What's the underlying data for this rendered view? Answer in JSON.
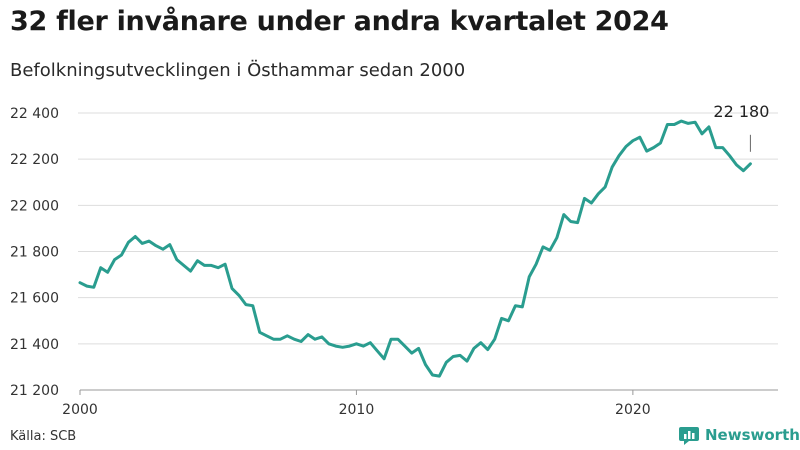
{
  "title": "32 fler invånare under andra kvartalet 2024",
  "subtitle": "Befolkningsutvecklingen i Östhammar sedan 2000",
  "source": "Källa: SCB",
  "brand": {
    "name": "Newsworthy",
    "color": "#2a9d8f",
    "icon": "bar-chart-icon"
  },
  "colors": {
    "line": "#2a9d8f",
    "grid": "#dddddd",
    "axis": "#999999"
  },
  "chart_data": {
    "type": "line",
    "xlabel": "",
    "ylabel": "",
    "x_ticks": [
      {
        "label": "2000",
        "value": 2000
      },
      {
        "label": "2010",
        "value": 2010
      },
      {
        "label": "2020",
        "value": 2020
      }
    ],
    "y_ticks": [
      {
        "label": "21 200",
        "value": 21200
      },
      {
        "label": "21 400",
        "value": 21400
      },
      {
        "label": "21 600",
        "value": 21600
      },
      {
        "label": "21 800",
        "value": 21800
      },
      {
        "label": "22 000",
        "value": 22000
      },
      {
        "label": "22 200",
        "value": 22200
      },
      {
        "label": "22 400",
        "value": 22400
      }
    ],
    "xlim": [
      2000,
      2025.25
    ],
    "ylim": [
      21200,
      22450
    ],
    "grid": "horizontal",
    "annotation": {
      "label": "22 180",
      "x": 2024.25,
      "y": 22180
    },
    "x": [
      2000.0,
      2000.25,
      2000.5,
      2000.75,
      2001.0,
      2001.25,
      2001.5,
      2001.75,
      2002.0,
      2002.25,
      2002.5,
      2002.75,
      2003.0,
      2003.25,
      2003.5,
      2003.75,
      2004.0,
      2004.25,
      2004.5,
      2004.75,
      2005.0,
      2005.25,
      2005.5,
      2005.75,
      2006.0,
      2006.25,
      2006.5,
      2006.75,
      2007.0,
      2007.25,
      2007.5,
      2007.75,
      2008.0,
      2008.25,
      2008.5,
      2008.75,
      2009.0,
      2009.25,
      2009.5,
      2009.75,
      2010.0,
      2010.25,
      2010.5,
      2010.75,
      2011.0,
      2011.25,
      2011.5,
      2011.75,
      2012.0,
      2012.25,
      2012.5,
      2012.75,
      2013.0,
      2013.25,
      2013.5,
      2013.75,
      2014.0,
      2014.25,
      2014.5,
      2014.75,
      2015.0,
      2015.25,
      2015.5,
      2015.75,
      2016.0,
      2016.25,
      2016.5,
      2016.75,
      2017.0,
      2017.25,
      2017.5,
      2017.75,
      2018.0,
      2018.25,
      2018.5,
      2018.75,
      2019.0,
      2019.25,
      2019.5,
      2019.75,
      2020.0,
      2020.25,
      2020.5,
      2020.75,
      2021.0,
      2021.25,
      2021.5,
      2021.75,
      2022.0,
      2022.25,
      2022.5,
      2022.75,
      2023.0,
      2023.25,
      2023.5,
      2023.75,
      2024.0,
      2024.25
    ],
    "values": [
      21665,
      21650,
      21645,
      21730,
      21710,
      21765,
      21785,
      21840,
      21865,
      21835,
      21845,
      21825,
      21810,
      21830,
      21765,
      21740,
      21715,
      21760,
      21740,
      21740,
      21730,
      21745,
      21640,
      21610,
      21570,
      21565,
      21450,
      21435,
      21420,
      21420,
      21435,
      21420,
      21410,
      21440,
      21420,
      21430,
      21400,
      21390,
      21385,
      21390,
      21400,
      21390,
      21405,
      21370,
      21335,
      21420,
      21420,
      21390,
      21360,
      21380,
      21310,
      21265,
      21260,
      21320,
      21345,
      21350,
      21325,
      21380,
      21405,
      21375,
      21420,
      21510,
      21500,
      21565,
      21560,
      21690,
      21745,
      21820,
      21805,
      21860,
      21960,
      21930,
      21925,
      22030,
      22010,
      22050,
      22080,
      22165,
      22215,
      22255,
      22280,
      22295,
      22235,
      22250,
      22270,
      22350,
      22350,
      22365,
      22355,
      22360,
      22310,
      22340,
      22250,
      22250,
      22215,
      22175,
      22150,
      22180
    ]
  }
}
